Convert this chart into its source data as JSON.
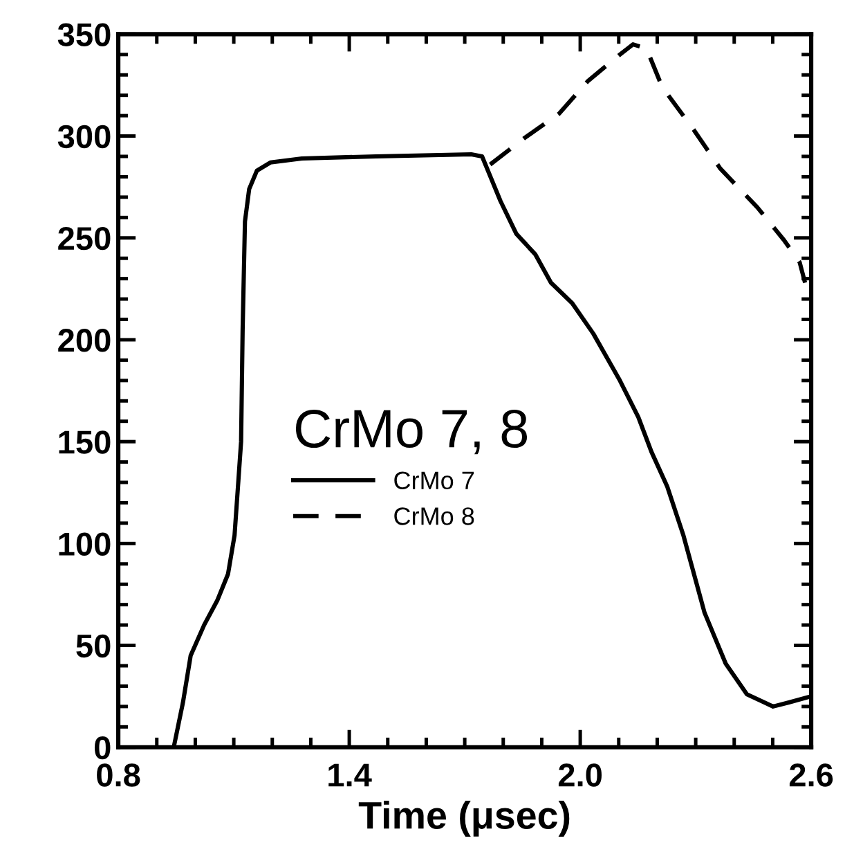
{
  "chart_data": {
    "type": "line",
    "xlabel": "Time (μsec)",
    "legend_title": "CrMo 7, 8",
    "legend": "center left",
    "xlim": [
      0.8,
      2.6
    ],
    "ylim": [
      0,
      350
    ],
    "xticks": [
      0.8,
      1.4,
      {
        "value": 2.0,
        "label": "2.0"
      },
      2.6
    ],
    "yticks": [
      0,
      50,
      100,
      150,
      200,
      250,
      300,
      350
    ],
    "grid": false,
    "series": [
      {
        "name": "CrMo 7",
        "color": "#000000",
        "line_style": "solid",
        "x": [
          0.944,
          0.968,
          0.988,
          1.023,
          1.057,
          1.085,
          1.102,
          1.112,
          1.119,
          1.123,
          1.129,
          1.14,
          1.16,
          1.195,
          1.277,
          1.47,
          1.717,
          1.745,
          1.793,
          1.834,
          1.883,
          1.924,
          1.979,
          2.034,
          2.103,
          2.151,
          2.185,
          2.226,
          2.268,
          2.323,
          2.378,
          2.433,
          2.501,
          2.542,
          2.6
        ],
        "values": [
          0,
          22,
          45,
          60,
          72,
          85,
          104,
          131,
          150,
          205,
          258,
          274,
          283,
          287,
          289,
          290,
          291,
          290,
          268,
          252,
          242,
          228,
          218,
          203,
          180,
          162,
          145,
          128,
          104,
          66,
          41,
          26,
          20,
          22,
          25
        ]
      },
      {
        "name": "CrMo 8",
        "color": "#000000",
        "line_style": "dashed",
        "x": [
          1.766,
          1.855,
          1.945,
          2.02,
          2.103,
          2.137,
          2.172,
          2.213,
          2.295,
          2.364,
          2.46,
          2.529,
          2.57,
          2.584
        ],
        "values": [
          286,
          299,
          311,
          327,
          340,
          345,
          343,
          324,
          303,
          284,
          265,
          249,
          238,
          228
        ]
      }
    ]
  }
}
